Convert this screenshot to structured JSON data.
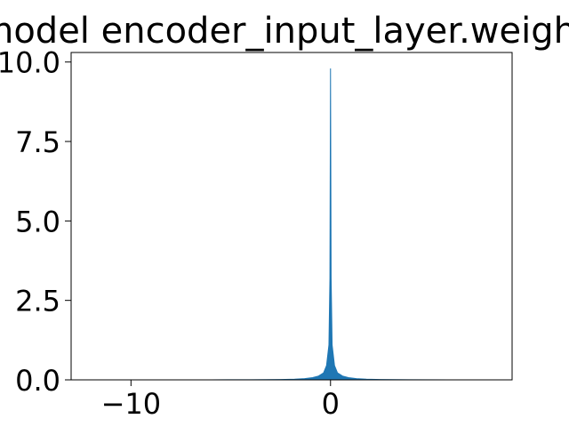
{
  "chart_data": {
    "type": "area",
    "title": "model encoder_input_layer.weight",
    "xlabel": "",
    "ylabel": "",
    "xlim": [
      -13,
      9.1
    ],
    "ylim": [
      0,
      10.3
    ],
    "grid": false,
    "legend": "none",
    "x_ticks": [
      {
        "value": -10,
        "label": "−10"
      },
      {
        "value": 0,
        "label": "0"
      }
    ],
    "y_ticks": [
      {
        "value": 0,
        "label": "0.0"
      },
      {
        "value": 2.5,
        "label": "2.5"
      },
      {
        "value": 5,
        "label": "5.0"
      },
      {
        "value": 7.5,
        "label": "7.5"
      },
      {
        "value": 10,
        "label": "10.0"
      }
    ],
    "series": [
      {
        "color": "#1f77b4",
        "x": [
          -13,
          -10,
          -6,
          -4,
          -2.5,
          -1.8,
          -1.3,
          -0.9,
          -0.6,
          -0.35,
          -0.2,
          -0.08,
          -0.03,
          0,
          0.03,
          0.08,
          0.2,
          0.35,
          0.6,
          0.9,
          1.3,
          1.8,
          2.5,
          4,
          6,
          8.2
        ],
        "y": [
          0,
          0,
          0.001,
          0.005,
          0.01,
          0.02,
          0.04,
          0.07,
          0.12,
          0.22,
          0.45,
          1.1,
          3.2,
          9.8,
          3.2,
          1.1,
          0.45,
          0.22,
          0.12,
          0.07,
          0.04,
          0.02,
          0.01,
          0.005,
          0.001,
          0
        ]
      }
    ]
  }
}
